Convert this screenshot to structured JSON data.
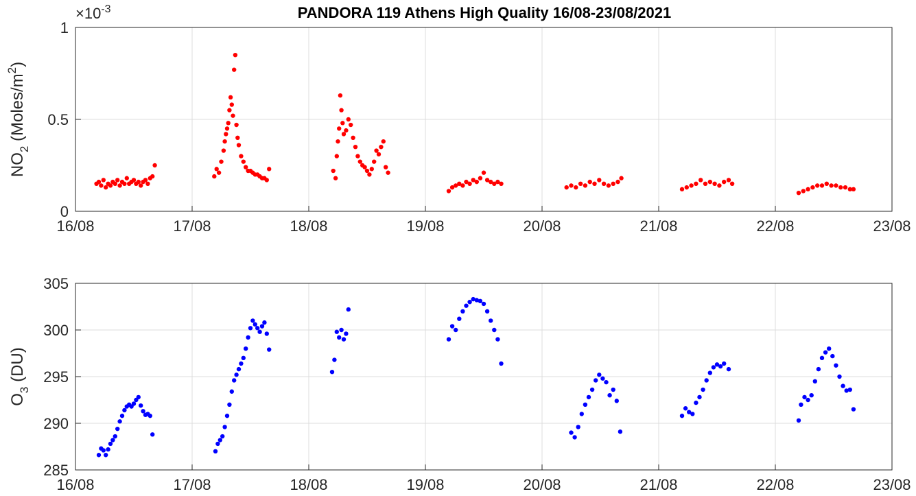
{
  "figure": {
    "title": "PANDORA 119 Athens High Quality 16/08-23/08/2021"
  },
  "chart_data": [
    {
      "type": "scatter",
      "title": "PANDORA 119 Athens High Quality 16/08-23/08/2021",
      "ylabel_main": "NO",
      "ylabel_sub": "2",
      "ylabel_rest": " (Moles/m",
      "ylabel_sup": "2",
      "ylabel_close": ")",
      "exponent_text": "×10",
      "exponent_power": "-3",
      "xlim": [
        16,
        23
      ],
      "ylim": [
        0,
        1
      ],
      "xticks": [
        16,
        17,
        18,
        19,
        20,
        21,
        22,
        23
      ],
      "xtick_labels": [
        "16/08",
        "17/08",
        "18/08",
        "19/08",
        "20/08",
        "21/08",
        "22/08",
        "23/08"
      ],
      "yticks": [
        0,
        0.5,
        1
      ],
      "ytick_labels": [
        "0",
        "0.5",
        "1"
      ],
      "grid": true,
      "color": "#ff0000",
      "series": [
        {
          "x": [
            16.18,
            16.2,
            16.22,
            16.24,
            16.26,
            16.28,
            16.3,
            16.32,
            16.34,
            16.36,
            16.38,
            16.4,
            16.42,
            16.44,
            16.46,
            16.48,
            16.5,
            16.52,
            16.54,
            16.56,
            16.58,
            16.6,
            16.62,
            16.64,
            16.66,
            16.68,
            17.19,
            17.21,
            17.23,
            17.25,
            17.27,
            17.28,
            17.29,
            17.3,
            17.31,
            17.32,
            17.33,
            17.34,
            17.35,
            17.36,
            17.37,
            17.38,
            17.39,
            17.4,
            17.42,
            17.44,
            17.46,
            17.48,
            17.5,
            17.52,
            17.54,
            17.56,
            17.58,
            17.6,
            17.62,
            17.64,
            17.66,
            18.21,
            18.23,
            18.24,
            18.25,
            18.26,
            18.27,
            18.28,
            18.29,
            18.3,
            18.32,
            18.34,
            18.36,
            18.38,
            18.4,
            18.42,
            18.44,
            18.46,
            18.48,
            18.5,
            18.52,
            18.54,
            18.56,
            18.58,
            18.6,
            18.62,
            18.64,
            18.66,
            18.68,
            19.2,
            19.23,
            19.26,
            19.29,
            19.32,
            19.35,
            19.38,
            19.41,
            19.44,
            19.47,
            19.5,
            19.53,
            19.56,
            19.59,
            19.62,
            19.65,
            20.21,
            20.25,
            20.29,
            20.33,
            20.37,
            20.41,
            20.45,
            20.49,
            20.53,
            20.57,
            20.61,
            20.65,
            20.68,
            21.2,
            21.24,
            21.28,
            21.32,
            21.36,
            21.4,
            21.44,
            21.48,
            21.52,
            21.56,
            21.6,
            21.63,
            22.2,
            22.24,
            22.28,
            22.32,
            22.36,
            22.4,
            22.44,
            22.48,
            22.52,
            22.56,
            22.6,
            22.64,
            22.67
          ],
          "y": [
            0.15,
            0.16,
            0.14,
            0.17,
            0.13,
            0.15,
            0.14,
            0.16,
            0.15,
            0.17,
            0.14,
            0.16,
            0.15,
            0.18,
            0.15,
            0.16,
            0.17,
            0.15,
            0.16,
            0.14,
            0.16,
            0.17,
            0.15,
            0.18,
            0.19,
            0.25,
            0.19,
            0.23,
            0.21,
            0.27,
            0.33,
            0.38,
            0.42,
            0.45,
            0.48,
            0.55,
            0.62,
            0.58,
            0.52,
            0.77,
            0.85,
            0.47,
            0.4,
            0.36,
            0.3,
            0.27,
            0.24,
            0.22,
            0.22,
            0.21,
            0.2,
            0.2,
            0.19,
            0.18,
            0.18,
            0.17,
            0.23,
            0.22,
            0.18,
            0.3,
            0.38,
            0.45,
            0.63,
            0.55,
            0.48,
            0.42,
            0.44,
            0.5,
            0.47,
            0.4,
            0.35,
            0.3,
            0.27,
            0.25,
            0.24,
            0.22,
            0.2,
            0.23,
            0.27,
            0.33,
            0.31,
            0.35,
            0.38,
            0.24,
            0.21,
            0.11,
            0.13,
            0.14,
            0.15,
            0.14,
            0.16,
            0.15,
            0.17,
            0.16,
            0.18,
            0.21,
            0.17,
            0.16,
            0.15,
            0.16,
            0.15,
            0.13,
            0.14,
            0.13,
            0.15,
            0.14,
            0.16,
            0.15,
            0.17,
            0.15,
            0.14,
            0.15,
            0.16,
            0.18,
            0.12,
            0.13,
            0.14,
            0.15,
            0.17,
            0.15,
            0.16,
            0.15,
            0.14,
            0.16,
            0.17,
            0.15,
            0.1,
            0.11,
            0.12,
            0.13,
            0.14,
            0.14,
            0.15,
            0.14,
            0.14,
            0.13,
            0.13,
            0.12,
            0.12
          ]
        }
      ]
    },
    {
      "type": "scatter",
      "ylabel_main": "O",
      "ylabel_sub": "3",
      "ylabel_rest": " (DU)",
      "xlim": [
        16,
        23
      ],
      "ylim": [
        285,
        305
      ],
      "xticks": [
        16,
        17,
        18,
        19,
        20,
        21,
        22,
        23
      ],
      "xtick_labels": [
        "16/08",
        "17/08",
        "18/08",
        "19/08",
        "20/08",
        "21/08",
        "22/08",
        "23/08"
      ],
      "yticks": [
        285,
        290,
        295,
        300,
        305
      ],
      "ytick_labels": [
        "285",
        "290",
        "295",
        "300",
        "305"
      ],
      "grid": true,
      "color": "#0000ff",
      "series": [
        {
          "x": [
            16.2,
            16.22,
            16.24,
            16.26,
            16.28,
            16.3,
            16.32,
            16.34,
            16.36,
            16.38,
            16.4,
            16.42,
            16.44,
            16.46,
            16.48,
            16.5,
            16.52,
            16.54,
            16.56,
            16.58,
            16.6,
            16.62,
            16.64,
            16.66,
            17.2,
            17.22,
            17.24,
            17.26,
            17.28,
            17.3,
            17.32,
            17.34,
            17.36,
            17.38,
            17.4,
            17.42,
            17.44,
            17.46,
            17.48,
            17.5,
            17.52,
            17.54,
            17.56,
            17.58,
            17.6,
            17.62,
            17.64,
            17.66,
            18.2,
            18.22,
            18.24,
            18.26,
            18.28,
            18.3,
            18.32,
            18.34,
            19.2,
            19.23,
            19.26,
            19.29,
            19.32,
            19.35,
            19.38,
            19.41,
            19.44,
            19.47,
            19.5,
            19.53,
            19.56,
            19.59,
            19.62,
            19.65,
            20.25,
            20.28,
            20.31,
            20.34,
            20.37,
            20.4,
            20.43,
            20.46,
            20.49,
            20.52,
            20.55,
            20.58,
            20.61,
            20.64,
            20.67,
            21.2,
            21.23,
            21.26,
            21.29,
            21.32,
            21.35,
            21.38,
            21.41,
            21.44,
            21.47,
            21.5,
            21.53,
            21.56,
            21.6,
            22.2,
            22.22,
            22.25,
            22.28,
            22.31,
            22.34,
            22.37,
            22.4,
            22.43,
            22.46,
            22.49,
            22.52,
            22.55,
            22.58,
            22.61,
            22.64,
            22.67
          ],
          "y": [
            286.6,
            287.3,
            287.1,
            286.6,
            287.2,
            287.8,
            288.2,
            288.6,
            289.4,
            290.2,
            290.8,
            291.4,
            291.8,
            292.0,
            291.8,
            292.1,
            292.5,
            292.8,
            291.9,
            291.3,
            290.9,
            291.0,
            290.8,
            288.8,
            287.0,
            287.8,
            288.2,
            288.6,
            289.6,
            290.8,
            292.0,
            293.4,
            294.6,
            295.2,
            295.8,
            296.4,
            297.0,
            298.0,
            299.2,
            300.2,
            301.0,
            300.6,
            300.2,
            299.8,
            300.4,
            300.8,
            299.6,
            297.9,
            295.5,
            296.8,
            299.8,
            299.2,
            300.0,
            299.0,
            299.6,
            302.2,
            299.0,
            300.4,
            300.0,
            301.2,
            302.0,
            302.6,
            303.0,
            303.3,
            303.2,
            303.1,
            302.8,
            302.0,
            301.0,
            300.0,
            299.0,
            296.4,
            289.0,
            288.5,
            289.6,
            291.0,
            292.0,
            292.8,
            293.6,
            294.6,
            295.2,
            294.8,
            294.4,
            293.0,
            293.6,
            292.4,
            289.1,
            290.8,
            291.6,
            291.2,
            291.0,
            292.2,
            292.8,
            293.6,
            294.6,
            295.4,
            296.0,
            296.3,
            296.1,
            296.4,
            295.8,
            290.3,
            292.0,
            292.8,
            292.5,
            293.0,
            294.5,
            295.8,
            297.0,
            297.6,
            298.0,
            297.2,
            296.2,
            295.0,
            294.0,
            293.5,
            293.6,
            291.5
          ]
        }
      ]
    }
  ]
}
